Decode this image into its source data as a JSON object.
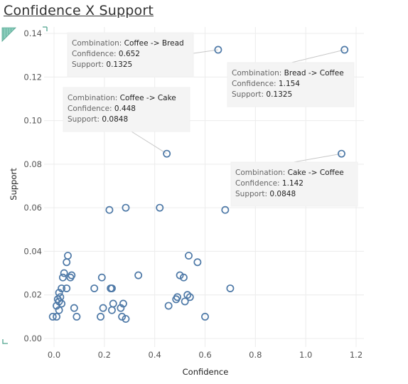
{
  "title": "Confidence X Support",
  "chart_data": {
    "type": "scatter",
    "xlabel": "Confidence",
    "ylabel": "Support",
    "xlim": [
      -0.05,
      1.22
    ],
    "ylim": [
      -0.005,
      0.145
    ],
    "xticks": [
      "0.0",
      "0.2",
      "0.4",
      "0.6",
      "0.8",
      "1.0",
      "1.2"
    ],
    "xtick_values": [
      0,
      0.2,
      0.4,
      0.6,
      0.8,
      1.0,
      1.2
    ],
    "yticks": [
      "0.00",
      "0.02",
      "0.04",
      "0.06",
      "0.08",
      "0.10",
      "0.12",
      "0.14"
    ],
    "ytick_values": [
      0,
      0.02,
      0.04,
      0.06,
      0.08,
      0.1,
      0.12,
      0.14
    ],
    "grid": true,
    "marker_color": "#4e79a7",
    "points": [
      {
        "x": 0.652,
        "y": 0.1325
      },
      {
        "x": 1.154,
        "y": 0.1325
      },
      {
        "x": 0.448,
        "y": 0.0848
      },
      {
        "x": 1.142,
        "y": 0.0848
      },
      {
        "x": 0.22,
        "y": 0.059
      },
      {
        "x": 0.285,
        "y": 0.06
      },
      {
        "x": 0.42,
        "y": 0.06
      },
      {
        "x": 0.68,
        "y": 0.059
      },
      {
        "x": 0.055,
        "y": 0.038
      },
      {
        "x": 0.05,
        "y": 0.035
      },
      {
        "x": 0.535,
        "y": 0.038
      },
      {
        "x": 0.57,
        "y": 0.035
      },
      {
        "x": 0.04,
        "y": 0.03
      },
      {
        "x": 0.07,
        "y": 0.029
      },
      {
        "x": 0.035,
        "y": 0.028
      },
      {
        "x": 0.065,
        "y": 0.028
      },
      {
        "x": 0.19,
        "y": 0.028
      },
      {
        "x": 0.335,
        "y": 0.029
      },
      {
        "x": 0.5,
        "y": 0.029
      },
      {
        "x": 0.515,
        "y": 0.028
      },
      {
        "x": 0.03,
        "y": 0.023
      },
      {
        "x": 0.05,
        "y": 0.023
      },
      {
        "x": 0.16,
        "y": 0.023
      },
      {
        "x": 0.225,
        "y": 0.023
      },
      {
        "x": 0.23,
        "y": 0.023
      },
      {
        "x": 0.7,
        "y": 0.023
      },
      {
        "x": 0.02,
        "y": 0.021
      },
      {
        "x": 0.025,
        "y": 0.019
      },
      {
        "x": 0.015,
        "y": 0.018
      },
      {
        "x": 0.02,
        "y": 0.017
      },
      {
        "x": 0.03,
        "y": 0.016
      },
      {
        "x": 0.01,
        "y": 0.015
      },
      {
        "x": 0.02,
        "y": 0.013
      },
      {
        "x": 0.08,
        "y": 0.014
      },
      {
        "x": 0.195,
        "y": 0.014
      },
      {
        "x": 0.235,
        "y": 0.016
      },
      {
        "x": 0.23,
        "y": 0.013
      },
      {
        "x": 0.265,
        "y": 0.014
      },
      {
        "x": 0.275,
        "y": 0.016
      },
      {
        "x": 0.455,
        "y": 0.015
      },
      {
        "x": 0.485,
        "y": 0.018
      },
      {
        "x": 0.49,
        "y": 0.019
      },
      {
        "x": 0.52,
        "y": 0.017
      },
      {
        "x": 0.53,
        "y": 0.02
      },
      {
        "x": 0.54,
        "y": 0.019
      },
      {
        "x": -0.005,
        "y": 0.01
      },
      {
        "x": 0.01,
        "y": 0.01
      },
      {
        "x": 0.09,
        "y": 0.01
      },
      {
        "x": 0.185,
        "y": 0.01
      },
      {
        "x": 0.27,
        "y": 0.01
      },
      {
        "x": 0.285,
        "y": 0.009
      },
      {
        "x": 0.6,
        "y": 0.01
      }
    ],
    "annotations": [
      {
        "combination_label": "Combination:",
        "combination": "Coffee -> Bread",
        "confidence_label": "Confidence:",
        "confidence": "0.652",
        "support_label": "Support:",
        "support": "0.1325",
        "px": 0.652,
        "py": 0.1325,
        "box": "tl1"
      },
      {
        "combination_label": "Combination:",
        "combination": "Bread -> Coffee",
        "confidence_label": "Confidence:",
        "confidence": "1.154",
        "support_label": "Support:",
        "support": "0.1325",
        "px": 1.154,
        "py": 0.1325,
        "box": "tr1"
      },
      {
        "combination_label": "Combination:",
        "combination": "Coffee -> Cake",
        "confidence_label": "Confidence:",
        "confidence": "0.448",
        "support_label": "Support:",
        "support": "0.0848",
        "px": 0.448,
        "py": 0.0848,
        "box": "tl2"
      },
      {
        "combination_label": "Combination:",
        "combination": "Cake -> Coffee",
        "confidence_label": "Confidence:",
        "confidence": "1.142",
        "support_label": "Support:",
        "support": "0.0848",
        "px": 1.142,
        "py": 0.0848,
        "box": "tr2"
      }
    ]
  }
}
